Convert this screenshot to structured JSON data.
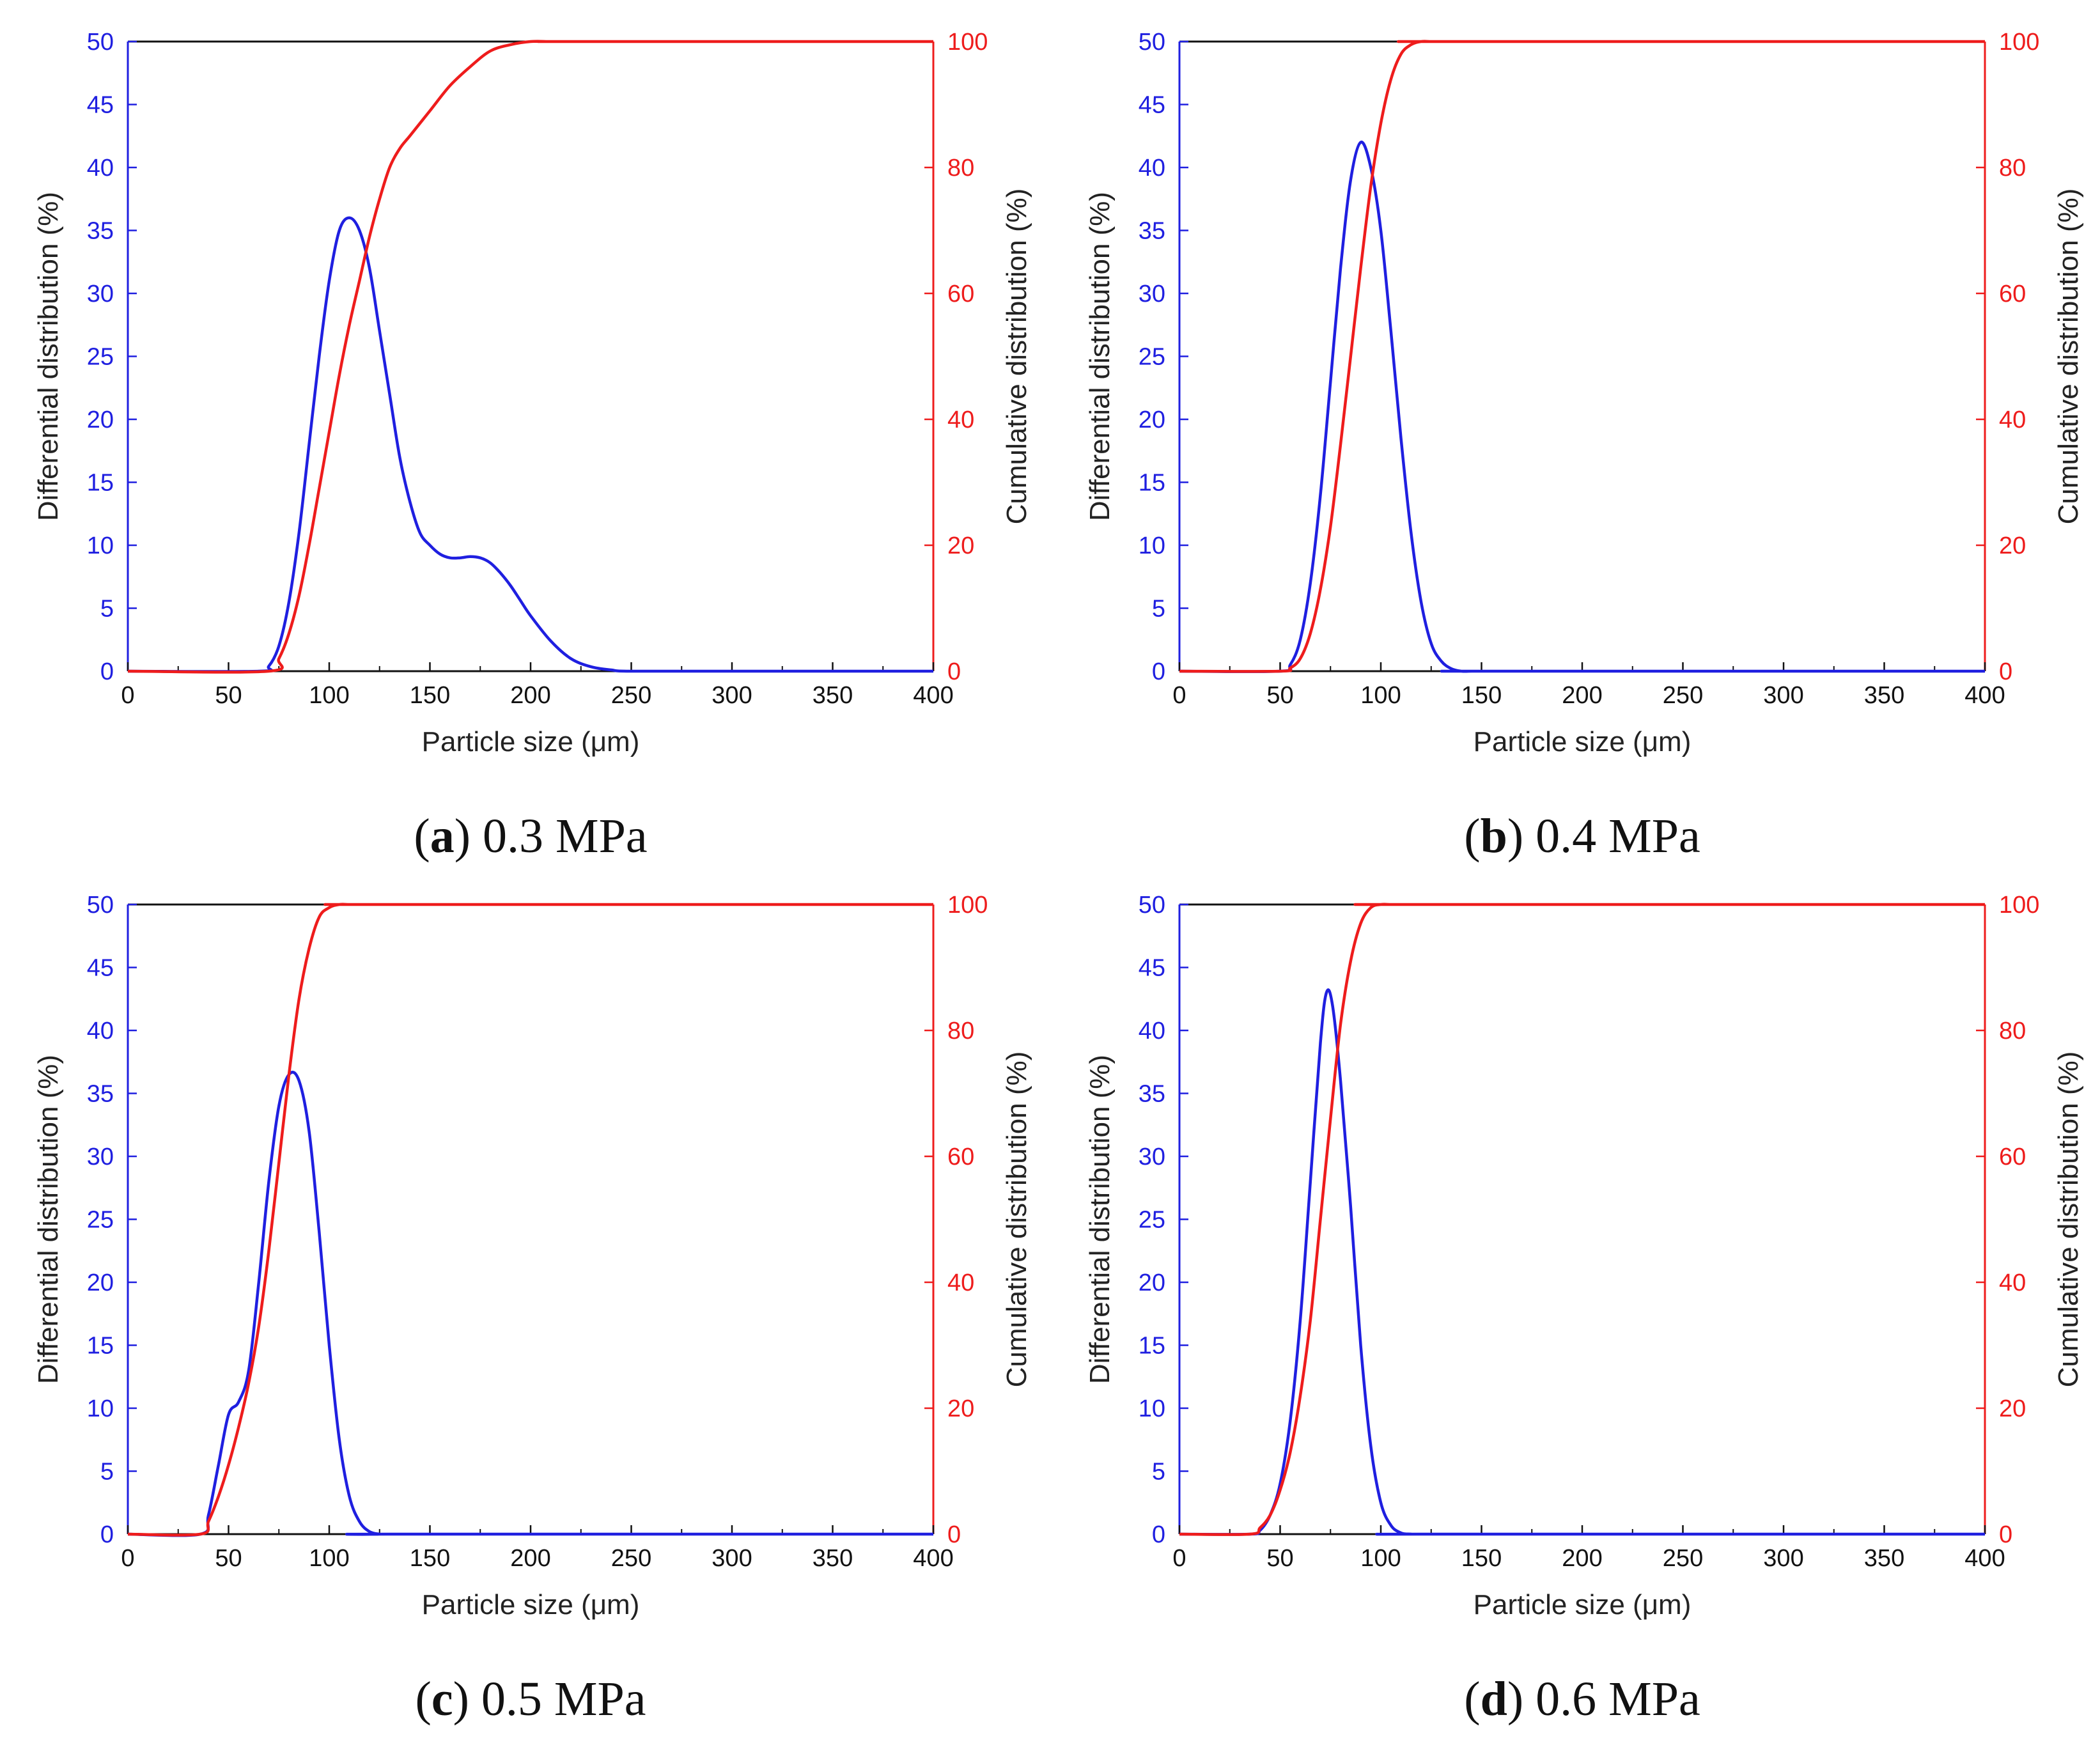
{
  "colors": {
    "differential": "#1f1fe0",
    "cumulative": "#ee1c1c",
    "frame": "#111111"
  },
  "chart_data": [
    {
      "type": "line",
      "panel_letter": "a",
      "caption_text": "0.3 MPa",
      "xlabel": "Particle size (μm)",
      "ylabel": "Differential distribution (%)",
      "y2label": "Cumulative distribution (%)",
      "xlim": [
        0,
        400
      ],
      "ylim": [
        0,
        50
      ],
      "y2lim": [
        0,
        100
      ],
      "xticks": [
        "0",
        "50",
        "100",
        "150",
        "200",
        "250",
        "300",
        "350",
        "400"
      ],
      "yticks": [
        "0",
        "5",
        "10",
        "15",
        "20",
        "25",
        "30",
        "35",
        "40",
        "45",
        "50"
      ],
      "y2ticks": [
        "0",
        "20",
        "40",
        "60",
        "80",
        "100"
      ],
      "series": [
        {
          "name": "Differential distribution",
          "axis": "left",
          "x": [
            0,
            65,
            70,
            75,
            80,
            85,
            90,
            95,
            100,
            105,
            110,
            115,
            120,
            125,
            130,
            135,
            140,
            145,
            150,
            155,
            160,
            165,
            170,
            175,
            180,
            185,
            190,
            195,
            200,
            210,
            220,
            230,
            240,
            250,
            300,
            400
          ],
          "y": [
            0,
            0,
            0.4,
            2,
            5.5,
            11,
            18,
            25,
            31,
            35,
            36,
            35,
            32,
            27,
            22,
            17,
            13.5,
            11,
            10,
            9.3,
            9,
            9,
            9.1,
            9,
            8.6,
            7.8,
            6.8,
            5.6,
            4.4,
            2.4,
            1.0,
            0.35,
            0.1,
            0,
            0,
            0
          ]
        },
        {
          "name": "Cumulative distribution",
          "axis": "right",
          "x": [
            0,
            70,
            75,
            80,
            85,
            90,
            95,
            100,
            105,
            110,
            115,
            120,
            125,
            130,
            135,
            140,
            150,
            160,
            170,
            180,
            190,
            200,
            210,
            220,
            400
          ],
          "y": [
            0,
            0,
            2,
            6,
            12,
            20,
            29,
            38,
            47,
            55,
            62,
            69,
            75,
            80,
            83,
            85,
            89,
            93,
            96,
            98.5,
            99.5,
            100,
            100,
            100,
            100
          ]
        }
      ]
    },
    {
      "type": "line",
      "panel_letter": "b",
      "caption_text": "0.4 MPa",
      "xlabel": "Particle size (μm)",
      "ylabel": "Differential distribution (%)",
      "y2label": "Cumulative distribution (%)",
      "xlim": [
        0,
        400
      ],
      "ylim": [
        0,
        50
      ],
      "y2lim": [
        0,
        100
      ],
      "xticks": [
        "0",
        "50",
        "100",
        "150",
        "200",
        "250",
        "300",
        "350",
        "400"
      ],
      "yticks": [
        "0",
        "5",
        "10",
        "15",
        "20",
        "25",
        "30",
        "35",
        "40",
        "45",
        "50"
      ],
      "y2ticks": [
        "0",
        "20",
        "40",
        "60",
        "80",
        "100"
      ],
      "series": [
        {
          "name": "Differential distribution",
          "axis": "left",
          "x": [
            0,
            50,
            55,
            60,
            65,
            70,
            75,
            80,
            85,
            90,
            95,
            100,
            105,
            110,
            115,
            120,
            125,
            130,
            135,
            140,
            145,
            150,
            400
          ],
          "y": [
            0,
            0,
            0.5,
            2.5,
            7,
            14,
            23,
            32,
            39,
            42,
            40,
            35,
            27,
            18.5,
            11,
            5.5,
            2.2,
            0.8,
            0.2,
            0,
            0,
            0,
            0
          ]
        },
        {
          "name": "Cumulative distribution",
          "axis": "right",
          "x": [
            0,
            50,
            55,
            60,
            65,
            70,
            75,
            80,
            85,
            90,
            95,
            100,
            105,
            110,
            115,
            120,
            125,
            130,
            400
          ],
          "y": [
            0,
            0,
            0.5,
            2,
            6,
            13,
            23,
            36,
            50,
            64,
            77,
            87,
            94,
            98,
            99.5,
            100,
            100,
            100,
            100
          ]
        }
      ]
    },
    {
      "type": "line",
      "panel_letter": "c",
      "caption_text": "0.5 MPa",
      "xlabel": "Particle size (μm)",
      "ylabel": "Differential distribution (%)",
      "y2label": "Cumulative distribution (%)",
      "xlim": [
        0,
        400
      ],
      "ylim": [
        0,
        50
      ],
      "y2lim": [
        0,
        100
      ],
      "xticks": [
        "0",
        "50",
        "100",
        "150",
        "200",
        "250",
        "300",
        "350",
        "400"
      ],
      "yticks": [
        "0",
        "5",
        "10",
        "15",
        "20",
        "25",
        "30",
        "35",
        "40",
        "45",
        "50"
      ],
      "y2ticks": [
        "0",
        "20",
        "40",
        "60",
        "80",
        "100"
      ],
      "series": [
        {
          "name": "Differential distribution",
          "axis": "left",
          "x": [
            0,
            36,
            40,
            45,
            50,
            55,
            60,
            65,
            70,
            75,
            80,
            85,
            90,
            95,
            100,
            105,
            110,
            115,
            120,
            125,
            130,
            400
          ],
          "y": [
            0,
            0,
            1.5,
            5.5,
            9.5,
            10.5,
            13,
            20,
            28,
            34,
            36.5,
            36,
            32,
            24,
            15,
            7.5,
            3,
            1,
            0.2,
            0,
            0,
            0
          ]
        },
        {
          "name": "Cumulative distribution",
          "axis": "right",
          "x": [
            0,
            36,
            40,
            45,
            50,
            55,
            60,
            65,
            70,
            75,
            80,
            85,
            90,
            95,
            100,
            105,
            110,
            115,
            120,
            400
          ],
          "y": [
            0,
            0,
            2,
            6,
            11,
            17,
            24,
            33,
            45,
            59,
            73,
            85,
            93,
            98,
            99.5,
            100,
            100,
            100,
            100,
            100
          ]
        }
      ]
    },
    {
      "type": "line",
      "panel_letter": "d",
      "caption_text": "0.6 MPa",
      "xlabel": "Particle size (μm)",
      "ylabel": "Differential distribution (%)",
      "y2label": "Cumulative distribution (%)",
      "xlim": [
        0,
        400
      ],
      "ylim": [
        0,
        50
      ],
      "y2lim": [
        0,
        100
      ],
      "xticks": [
        "0",
        "50",
        "100",
        "150",
        "200",
        "250",
        "300",
        "350",
        "400"
      ],
      "yticks": [
        "0",
        "5",
        "10",
        "15",
        "20",
        "25",
        "30",
        "35",
        "40",
        "45",
        "50"
      ],
      "y2ticks": [
        "0",
        "20",
        "40",
        "60",
        "80",
        "100"
      ],
      "series": [
        {
          "name": "Differential distribution",
          "axis": "left",
          "x": [
            0,
            35,
            40,
            45,
            50,
            55,
            60,
            65,
            70,
            73,
            76,
            80,
            85,
            90,
            95,
            100,
            105,
            110,
            115,
            120,
            400
          ],
          "y": [
            0,
            0,
            0.3,
            1.5,
            4,
            9,
            17,
            28,
            39,
            43,
            42,
            36,
            26,
            15,
            7,
            2.5,
            0.7,
            0.1,
            0,
            0,
            0
          ]
        },
        {
          "name": "Cumulative distribution",
          "axis": "right",
          "x": [
            0,
            35,
            40,
            45,
            50,
            55,
            60,
            65,
            70,
            75,
            80,
            85,
            90,
            95,
            100,
            105,
            110,
            400
          ],
          "y": [
            0,
            0,
            1,
            3,
            7,
            13,
            22,
            34,
            50,
            66,
            81,
            91,
            97,
            99.5,
            100,
            100,
            100,
            100
          ]
        }
      ]
    }
  ]
}
